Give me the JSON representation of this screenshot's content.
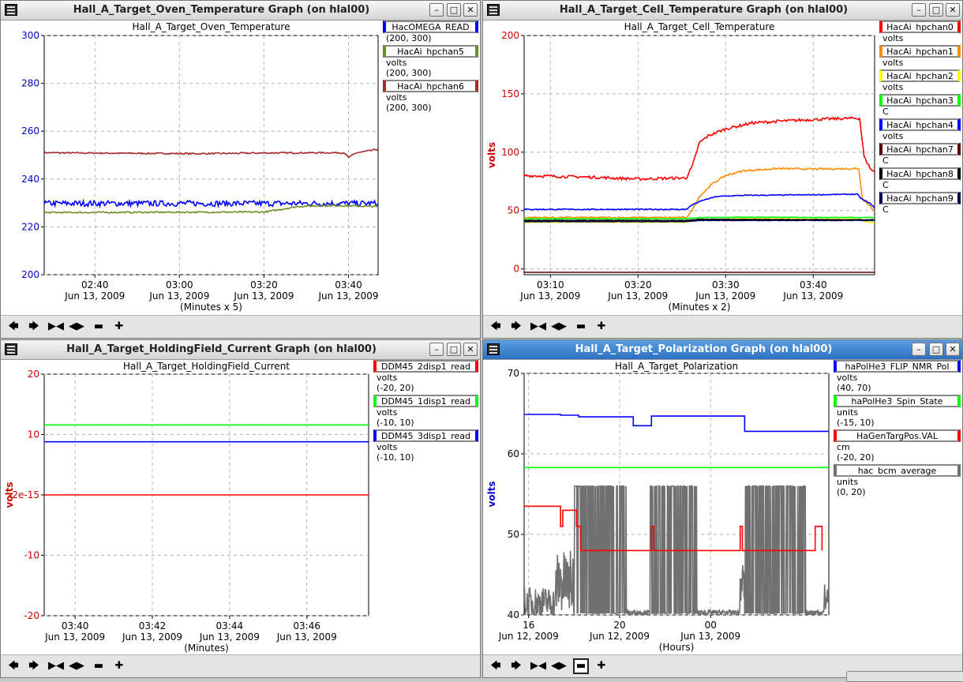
{
  "windows": [
    {
      "id": "w0",
      "title": "Hall_A_Target_Oven_Temperature Graph (on hlal00)",
      "active": false,
      "plot_title": "Hall_A_Target_Oven_Temperature",
      "xunits": "(Minutes x 5)",
      "ylabel": "",
      "ylabel_color": "#0000c8",
      "ytick_color": "#0000c8",
      "legend": [
        {
          "name": "HacOMEGA_READ",
          "color": "#0000ff",
          "lines": [
            "(200, 300)"
          ]
        },
        {
          "name": "HacAi_hpchan5",
          "color": "#6b8e23",
          "lines": [
            "volts",
            "(200, 300)"
          ]
        },
        {
          "name": "HacAi_hpchan6",
          "color": "#a52a2a",
          "lines": [
            "volts",
            "(200, 300)"
          ]
        }
      ],
      "chart_data": {
        "type": "line",
        "ylim": [
          200,
          300
        ],
        "xlim": [
          148,
          227
        ],
        "yticks": [
          "200",
          "220",
          "240",
          "260",
          "280",
          "300"
        ],
        "xticks": [
          {
            "x": 160,
            "time": "02:40",
            "date": "Jun 13, 2009"
          },
          {
            "x": 180,
            "time": "03:00",
            "date": "Jun 13, 2009"
          },
          {
            "x": 200,
            "time": "03:20",
            "date": "Jun 13, 2009"
          },
          {
            "x": 220,
            "time": "03:40",
            "date": "Jun 13, 2009"
          }
        ],
        "series": [
          {
            "name": "HacAi_hpchan6",
            "color": "#a52a2a",
            "points": [
              [
                148,
                251
              ],
              [
                165,
                250.8
              ],
              [
                185,
                250.6
              ],
              [
                200,
                250.9
              ],
              [
                213,
                251
              ],
              [
                219,
                251
              ],
              [
                220,
                249
              ],
              [
                222,
                251
              ],
              [
                225,
                251.8
              ],
              [
                227,
                252.5
              ]
            ],
            "noise": 0.3
          },
          {
            "name": "HacOMEGA_READ",
            "color": "#0000ff",
            "points": [
              [
                148,
                229.8
              ],
              [
                227,
                229.8
              ]
            ],
            "noise": 1.2
          },
          {
            "name": "HacAi_hpchan5",
            "color": "#6b8e23",
            "points": [
              [
                148,
                226
              ],
              [
                200,
                226.2
              ],
              [
                203,
                227
              ],
              [
                208,
                228.5
              ],
              [
                215,
                229
              ],
              [
                227,
                228.5
              ]
            ],
            "noise": 0.3
          }
        ]
      }
    },
    {
      "id": "w1",
      "title": "Hall_A_Target_Cell_Temperature Graph (on hlal00)",
      "active": false,
      "plot_title": "Hall_A_Target_Cell_Temperature",
      "xunits": "(Minutes x 2)",
      "ylabel": "volts",
      "ylabel_color": "#d00000",
      "ytick_color": "#d00000",
      "legend": [
        {
          "name": "HacAi_hpchan0",
          "color": "#ff0000",
          "lines": [
            "volts"
          ]
        },
        {
          "name": "HacAi_hpchan1",
          "color": "#ff8c00",
          "lines": [
            "volts"
          ]
        },
        {
          "name": "HacAi_hpchan2",
          "color": "#ffff00",
          "lines": [
            "volts"
          ]
        },
        {
          "name": "HacAi_hpchan3",
          "color": "#00ff00",
          "lines": [
            "C"
          ]
        },
        {
          "name": "HacAi_hpchan4",
          "color": "#0000ff",
          "lines": [
            "volts"
          ]
        },
        {
          "name": "HacAi_hpchan7",
          "color": "#5a0000",
          "lines": [
            "C"
          ]
        },
        {
          "name": "HacAi_hpchan8",
          "color": "#000000",
          "lines": [
            "C"
          ]
        },
        {
          "name": "HacAi_hpchan9",
          "color": "#000050",
          "lines": [
            "C"
          ]
        }
      ],
      "chart_data": {
        "type": "line",
        "ylim": [
          -5,
          200
        ],
        "xlim": [
          187,
          227
        ],
        "yticks": [
          "0",
          "50",
          "100",
          "150",
          "200"
        ],
        "ytick_values": [
          0,
          50,
          100,
          150,
          200
        ],
        "xticks": [
          {
            "x": 190,
            "time": "03:10",
            "date": "Jun 13, 2009"
          },
          {
            "x": 200,
            "time": "03:20",
            "date": "Jun 13, 2009"
          },
          {
            "x": 210,
            "time": "03:30",
            "date": "Jun 13, 2009"
          },
          {
            "x": 220,
            "time": "03:40",
            "date": "Jun 13, 2009"
          }
        ],
        "series": [
          {
            "name": "HacAi_hpchan0",
            "color": "#ff0000",
            "points": [
              [
                187,
                80
              ],
              [
                195,
                78.5
              ],
              [
                200,
                77
              ],
              [
                205.5,
                78
              ],
              [
                206.2,
                88
              ],
              [
                207,
                108
              ],
              [
                208,
                114
              ],
              [
                210,
                120
              ],
              [
                213,
                125
              ],
              [
                216,
                126.5
              ],
              [
                220,
                128
              ],
              [
                224,
                129
              ],
              [
                225.3,
                129
              ],
              [
                225.8,
                96
              ],
              [
                226.6,
                85
              ],
              [
                227,
                83
              ]
            ],
            "noise": 1.2
          },
          {
            "name": "HacAi_hpchan1",
            "color": "#ff8c00",
            "points": [
              [
                187,
                44
              ],
              [
                205.5,
                44
              ],
              [
                206,
                48
              ],
              [
                207,
                62
              ],
              [
                208.5,
                73
              ],
              [
                210,
                80
              ],
              [
                212,
                84
              ],
              [
                216,
                86
              ],
              [
                220,
                85.5
              ],
              [
                225.2,
                86
              ],
              [
                225.6,
                60
              ],
              [
                226.5,
                54
              ],
              [
                227,
                49
              ]
            ],
            "noise": 0.7
          },
          {
            "name": "HacAi_hpchan4",
            "color": "#0000ff",
            "points": [
              [
                187,
                51
              ],
              [
                205.5,
                51
              ],
              [
                206.2,
                55
              ],
              [
                207.5,
                59
              ],
              [
                209,
                62
              ],
              [
                212,
                63
              ],
              [
                216,
                63.2
              ],
              [
                220,
                63.5
              ],
              [
                225,
                64
              ],
              [
                225.5,
                60
              ],
              [
                226.5,
                56
              ],
              [
                227,
                52
              ]
            ],
            "noise": 0.4
          },
          {
            "name": "HacAi_hpchan3",
            "color": "#00ff00",
            "points": [
              [
                187,
                43
              ],
              [
                205.5,
                43
              ],
              [
                207,
                44
              ],
              [
                212,
                44.3
              ],
              [
                227,
                44
              ]
            ],
            "noise": 0.2
          },
          {
            "name": "HacAi_hpchan2",
            "color": "#ffff00",
            "points": [
              [
                187,
                40
              ],
              [
                205.5,
                40
              ],
              [
                206.5,
                42
              ],
              [
                212,
                43
              ],
              [
                225,
                42.5
              ],
              [
                227,
                39
              ]
            ],
            "noise": 0.2
          },
          {
            "name": "HacAi_hpchan8",
            "color": "#000000",
            "points": [
              [
                187,
                41.5
              ],
              [
                205.5,
                41.5
              ],
              [
                207,
                42.5
              ],
              [
                227,
                42
              ]
            ],
            "noise": 0.2
          },
          {
            "name": "HacAi_hpchan9",
            "color": "#000050",
            "points": [
              [
                187,
                40.5
              ],
              [
                205.5,
                40.5
              ],
              [
                207,
                41.5
              ],
              [
                227,
                41.5
              ]
            ],
            "noise": 0.2
          },
          {
            "name": "HacAi_hpchan7",
            "color": "#5a0000",
            "points": [
              [
                187,
                -3
              ],
              [
                227,
                -3
              ]
            ],
            "noise": 0
          }
        ]
      }
    },
    {
      "id": "w2",
      "title": "Hall_A_Target_HoldingField_Current Graph (on hlal00)",
      "active": false,
      "plot_title": "Hall_A_Target_HoldingField_Current",
      "xunits": "(Minutes)",
      "ylabel": "volts",
      "ylabel_color": "#d00000",
      "ytick_color": "#d00000",
      "legend": [
        {
          "name": "DDM45_2disp1_read",
          "color": "#ff0000",
          "lines": [
            "volts",
            "(-20, 20)"
          ]
        },
        {
          "name": "DDM45_1disp1_read",
          "color": "#00ff00",
          "lines": [
            "volts",
            "(-10, 10)"
          ]
        },
        {
          "name": "DDM45_3disp1_read",
          "color": "#0000ff",
          "lines": [
            "volts",
            "(-10, 10)"
          ]
        }
      ],
      "chart_data": {
        "type": "line",
        "ylim": [
          -20,
          20
        ],
        "xlim": [
          219.2,
          227.6
        ],
        "yticks": [
          "20",
          "10",
          "-2e-15",
          "-10",
          "-20"
        ],
        "ytick_values": [
          20,
          10,
          -2e-15,
          -10,
          -20
        ],
        "xticks": [
          {
            "x": 220,
            "time": "03:40",
            "date": "Jun 13, 2009"
          },
          {
            "x": 222,
            "time": "03:42",
            "date": "Jun 13, 2009"
          },
          {
            "x": 224,
            "time": "03:44",
            "date": "Jun 13, 2009"
          },
          {
            "x": 226,
            "time": "03:46",
            "date": "Jun 13, 2009"
          }
        ],
        "series": [
          {
            "name": "DDM45_1disp1_read",
            "color": "#00ff00",
            "points": [
              [
                219.2,
                11.6
              ],
              [
                227.6,
                11.6
              ]
            ],
            "noise": 0
          },
          {
            "name": "DDM45_3disp1_read",
            "color": "#0000ff",
            "points": [
              [
                219.2,
                8.8
              ],
              [
                227.6,
                8.8
              ]
            ],
            "noise": 0
          },
          {
            "name": "DDM45_2disp1_read",
            "color": "#ff0000",
            "points": [
              [
                219.2,
                0
              ],
              [
                227.6,
                0
              ]
            ],
            "noise": 0
          }
        ]
      }
    },
    {
      "id": "w3",
      "title": "Hall_A_Target_Polarization Graph (on hlal00)",
      "active": true,
      "plot_title": "Hall_A_Target_Polarization",
      "xunits": "(Hours)",
      "ylabel": "volts",
      "ylabel_color": "#0000c8",
      "ytick_color": "#000000",
      "legend": [
        {
          "name": "haPolHe3_FLIP_NMR_Pol",
          "color": "#0000ff",
          "lines": [
            "volts",
            "(40, 70)"
          ]
        },
        {
          "name": "haPolHe3_Spin_State",
          "color": "#00ff00",
          "lines": [
            "units",
            "(-15, 10)"
          ]
        },
        {
          "name": "HaGenTargPos.VAL",
          "color": "#ff0000",
          "lines": [
            "cm",
            "(-20, 20)"
          ]
        },
        {
          "name": "hac_bcm_average",
          "color": "#707070",
          "lines": [
            "units",
            "(0, 20)"
          ]
        }
      ],
      "chart_data": {
        "type": "line",
        "ylim": [
          40,
          70
        ],
        "xlim": [
          15.8,
          29.2
        ],
        "yticks": [
          "40",
          "50",
          "60",
          "70"
        ],
        "ytick_values": [
          40,
          50,
          60,
          70
        ],
        "xticks": [
          {
            "x": 16,
            "time": "16",
            "date": "Jun 12, 2009"
          },
          {
            "x": 20,
            "time": "20",
            "date": "Jun 12, 2009"
          },
          {
            "x": 24,
            "time": "00",
            "date": "Jun 13, 2009"
          }
        ],
        "series": [
          {
            "name": "hac_bcm_average",
            "color": "#707070",
            "points": [],
            "noise": 0,
            "bcm": true
          },
          {
            "name": "HaGenTargPos.VAL",
            "color": "#ff0000",
            "points": [
              [
                15.8,
                53.5
              ],
              [
                17.4,
                53.5
              ],
              [
                17.4,
                51
              ],
              [
                17.5,
                51
              ],
              [
                17.5,
                53
              ],
              [
                18.1,
                53
              ],
              [
                18.1,
                51
              ],
              [
                18.3,
                51
              ],
              [
                18.3,
                48
              ],
              [
                21.4,
                48
              ],
              [
                21.4,
                51
              ],
              [
                21.5,
                51
              ],
              [
                21.5,
                48
              ],
              [
                25.3,
                48
              ],
              [
                25.3,
                51
              ],
              [
                25.4,
                51
              ],
              [
                25.4,
                48
              ],
              [
                28.6,
                48
              ],
              [
                28.6,
                51
              ],
              [
                28.9,
                51
              ],
              [
                28.9,
                48
              ]
            ],
            "noise": 0
          },
          {
            "name": "haPolHe3_Spin_State",
            "color": "#00ff00",
            "points": [
              [
                15.8,
                58.3
              ],
              [
                29.2,
                58.3
              ]
            ],
            "noise": 0
          },
          {
            "name": "haPolHe3_FLIP_NMR_Pol",
            "color": "#0000ff",
            "points": [
              [
                15.8,
                64.9
              ],
              [
                17.4,
                64.9
              ],
              [
                17.4,
                64.8
              ],
              [
                18.2,
                64.8
              ],
              [
                18.2,
                64.6
              ],
              [
                20.6,
                64.6
              ],
              [
                20.6,
                63.5
              ],
              [
                21.4,
                63.5
              ],
              [
                21.4,
                64.7
              ],
              [
                25.5,
                64.7
              ],
              [
                25.5,
                62.8
              ],
              [
                29.2,
                62.8
              ]
            ],
            "noise": 0
          }
        ]
      }
    }
  ]
}
